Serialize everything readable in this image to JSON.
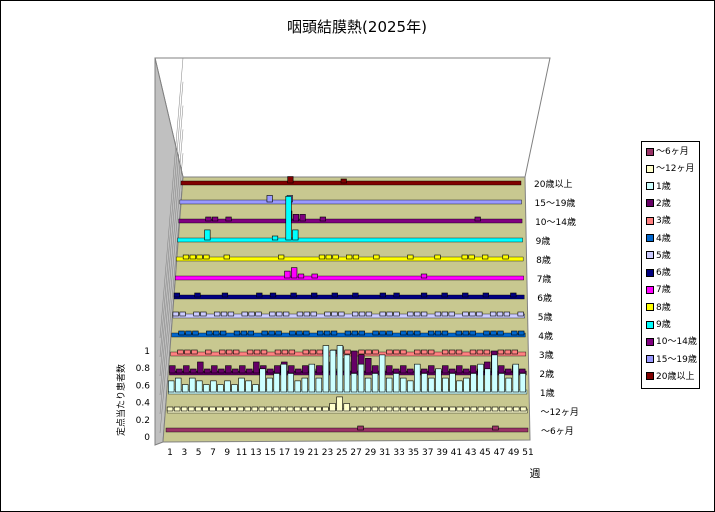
{
  "title": "咽頭結膜熱(2025年)",
  "x_label": "週",
  "z_label": "定点当たり患者数",
  "chart_data": {
    "type": "bar",
    "title": "咽頭結膜熱(2025年)",
    "xlabel": "週",
    "ylabel": "定点当たり患者数",
    "ylim": [
      0,
      1
    ],
    "yticks": [
      "0",
      "0.2",
      "0.4",
      "0.6",
      "0.8",
      "1"
    ],
    "week_ticks": [
      "1",
      "3",
      "5",
      "7",
      "9",
      "11",
      "13",
      "15",
      "17",
      "19",
      "21",
      "23",
      "25",
      "27",
      "29",
      "31",
      "33",
      "35",
      "37",
      "39",
      "41",
      "43",
      "45",
      "47",
      "49",
      "51"
    ],
    "legend_position": "right",
    "series": [
      {
        "name": "〜6ヶ月",
        "color": "#993366",
        "values": [
          0.0,
          0.0,
          0.0,
          0.0,
          0.0,
          0.0,
          0.0,
          0.0,
          0.0,
          0.0,
          0.0,
          0.0,
          0.0,
          0.0,
          0.0,
          0.0,
          0.0,
          0.0,
          0.0,
          0.0,
          0.0,
          0.0,
          0.0,
          0.0,
          0.0,
          0.0,
          0.0,
          0.04,
          0.0,
          0.0,
          0.0,
          0.0,
          0.0,
          0.0,
          0.0,
          0.0,
          0.0,
          0.0,
          0.0,
          0.0,
          0.0,
          0.0,
          0.0,
          0.0,
          0.0,
          0.0,
          0.04,
          0.0,
          0.0,
          0.0,
          0.0
        ]
      },
      {
        "name": "〜12ヶ月",
        "color": "#ffffcc",
        "values": [
          0.03,
          0.03,
          0.03,
          0.03,
          0.03,
          0.03,
          0.03,
          0.03,
          0.03,
          0.03,
          0.03,
          0.03,
          0.03,
          0.03,
          0.03,
          0.03,
          0.03,
          0.03,
          0.03,
          0.03,
          0.03,
          0.03,
          0.03,
          0.08,
          0.15,
          0.08,
          0.03,
          0.03,
          0.03,
          0.03,
          0.03,
          0.03,
          0.03,
          0.03,
          0.03,
          0.03,
          0.03,
          0.03,
          0.03,
          0.03,
          0.03,
          0.03,
          0.03,
          0.03,
          0.03,
          0.03,
          0.03,
          0.03,
          0.03,
          0.03,
          0.03
        ]
      },
      {
        "name": "1歳",
        "color": "#ccffff",
        "values": [
          0.12,
          0.15,
          0.08,
          0.15,
          0.12,
          0.08,
          0.12,
          0.08,
          0.12,
          0.08,
          0.15,
          0.12,
          0.08,
          0.25,
          0.15,
          0.2,
          0.3,
          0.2,
          0.12,
          0.15,
          0.3,
          0.15,
          0.5,
          0.45,
          0.5,
          0.4,
          0.2,
          0.3,
          0.15,
          0.2,
          0.4,
          0.15,
          0.2,
          0.15,
          0.12,
          0.3,
          0.2,
          0.15,
          0.25,
          0.15,
          0.2,
          0.12,
          0.15,
          0.2,
          0.3,
          0.25,
          0.4,
          0.2,
          0.15,
          0.3,
          0.2
        ]
      },
      {
        "name": "2歳",
        "color": "#660066",
        "values": [
          0.08,
          0.04,
          0.08,
          0.04,
          0.12,
          0.04,
          0.08,
          0.04,
          0.08,
          0.04,
          0.08,
          0.04,
          0.12,
          0.08,
          0.04,
          0.08,
          0.12,
          0.08,
          0.04,
          0.08,
          0.04,
          0.08,
          0.12,
          0.04,
          0.16,
          0.12,
          0.24,
          0.2,
          0.16,
          0.08,
          0.04,
          0.08,
          0.04,
          0.08,
          0.04,
          0.08,
          0.04,
          0.08,
          0.04,
          0.08,
          0.04,
          0.08,
          0.04,
          0.08,
          0.04,
          0.12,
          0.24,
          0.08,
          0.04,
          0.08,
          0.04
        ]
      },
      {
        "name": "3歳",
        "color": "#ff8080",
        "values": [
          0.0,
          0.04,
          0.04,
          0.04,
          0.0,
          0.04,
          0.0,
          0.04,
          0.04,
          0.04,
          0.0,
          0.04,
          0.04,
          0.04,
          0.0,
          0.04,
          0.04,
          0.04,
          0.0,
          0.04,
          0.04,
          0.04,
          0.0,
          0.04,
          0.08,
          0.04,
          0.0,
          0.04,
          0.04,
          0.04,
          0.0,
          0.04,
          0.04,
          0.04,
          0.0,
          0.04,
          0.04,
          0.04,
          0.0,
          0.04,
          0.04,
          0.04,
          0.0,
          0.04,
          0.04,
          0.04,
          0.0,
          0.04,
          0.04,
          0.04,
          0.0
        ]
      },
      {
        "name": "4歳",
        "color": "#0066cc",
        "values": [
          0.0,
          0.04,
          0.04,
          0.04,
          0.0,
          0.04,
          0.04,
          0.04,
          0.0,
          0.04,
          0.04,
          0.04,
          0.0,
          0.04,
          0.04,
          0.04,
          0.0,
          0.04,
          0.04,
          0.04,
          0.0,
          0.04,
          0.04,
          0.04,
          0.0,
          0.04,
          0.04,
          0.04,
          0.0,
          0.04,
          0.04,
          0.04,
          0.0,
          0.04,
          0.04,
          0.04,
          0.0,
          0.04,
          0.04,
          0.04,
          0.0,
          0.04,
          0.04,
          0.04,
          0.0,
          0.04,
          0.04,
          0.04,
          0.0,
          0.04,
          0.04
        ]
      },
      {
        "name": "5歳",
        "color": "#ccccff",
        "values": [
          0.04,
          0.04,
          0.0,
          0.04,
          0.04,
          0.0,
          0.04,
          0.04,
          0.04,
          0.0,
          0.04,
          0.04,
          0.04,
          0.0,
          0.04,
          0.04,
          0.04,
          0.0,
          0.04,
          0.04,
          0.04,
          0.0,
          0.04,
          0.04,
          0.04,
          0.0,
          0.04,
          0.04,
          0.04,
          0.0,
          0.04,
          0.04,
          0.04,
          0.0,
          0.04,
          0.04,
          0.04,
          0.0,
          0.04,
          0.04,
          0.04,
          0.0,
          0.04,
          0.04,
          0.04,
          0.0,
          0.04,
          0.04,
          0.04,
          0.0,
          0.04
        ]
      },
      {
        "name": "6歳",
        "color": "#000080",
        "values": [
          0.04,
          0.0,
          0.0,
          0.04,
          0.0,
          0.0,
          0.0,
          0.04,
          0.0,
          0.0,
          0.0,
          0.0,
          0.04,
          0.0,
          0.04,
          0.0,
          0.0,
          0.04,
          0.0,
          0.0,
          0.04,
          0.0,
          0.0,
          0.04,
          0.0,
          0.0,
          0.04,
          0.0,
          0.0,
          0.0,
          0.04,
          0.0,
          0.04,
          0.0,
          0.0,
          0.0,
          0.04,
          0.0,
          0.0,
          0.04,
          0.0,
          0.0,
          0.04,
          0.0,
          0.0,
          0.04,
          0.0,
          0.0,
          0.0,
          0.04,
          0.0
        ]
      },
      {
        "name": "7歳",
        "color": "#ff00ff",
        "values": [
          0.0,
          0.0,
          0.0,
          0.0,
          0.0,
          0.0,
          0.0,
          0.0,
          0.0,
          0.0,
          0.0,
          0.0,
          0.0,
          0.0,
          0.0,
          0.0,
          0.08,
          0.12,
          0.04,
          0.0,
          0.04,
          0.0,
          0.0,
          0.0,
          0.0,
          0.0,
          0.0,
          0.0,
          0.0,
          0.0,
          0.0,
          0.0,
          0.0,
          0.0,
          0.0,
          0.0,
          0.04,
          0.0,
          0.0,
          0.0,
          0.0,
          0.0,
          0.0,
          0.0,
          0.0,
          0.0,
          0.0,
          0.0,
          0.0,
          0.0,
          0.0
        ]
      },
      {
        "name": "8歳",
        "color": "#ffff00",
        "values": [
          0.0,
          0.04,
          0.04,
          0.04,
          0.04,
          0.0,
          0.0,
          0.04,
          0.0,
          0.0,
          0.0,
          0.0,
          0.0,
          0.0,
          0.0,
          0.04,
          0.0,
          0.0,
          0.0,
          0.0,
          0.0,
          0.04,
          0.04,
          0.04,
          0.0,
          0.04,
          0.04,
          0.0,
          0.0,
          0.04,
          0.0,
          0.0,
          0.0,
          0.0,
          0.04,
          0.0,
          0.0,
          0.0,
          0.04,
          0.0,
          0.0,
          0.0,
          0.04,
          0.04,
          0.0,
          0.04,
          0.0,
          0.0,
          0.04,
          0.0,
          0.0
        ]
      },
      {
        "name": "9歳",
        "color": "#00ffff",
        "values": [
          0.0,
          0.0,
          0.0,
          0.0,
          0.12,
          0.0,
          0.0,
          0.0,
          0.0,
          0.0,
          0.0,
          0.0,
          0.0,
          0.0,
          0.04,
          0.0,
          0.52,
          0.12,
          0.0,
          0.0,
          0.0,
          0.0,
          0.0,
          0.0,
          0.0,
          0.0,
          0.0,
          0.0,
          0.0,
          0.0,
          0.0,
          0.0,
          0.0,
          0.0,
          0.0,
          0.0,
          0.0,
          0.0,
          0.0,
          0.0,
          0.0,
          0.0,
          0.0,
          0.0,
          0.0,
          0.0,
          0.0,
          0.0,
          0.0,
          0.0,
          0.0
        ]
      },
      {
        "name": "10〜14歳",
        "color": "#800080",
        "values": [
          0.0,
          0.0,
          0.0,
          0.0,
          0.04,
          0.04,
          0.0,
          0.04,
          0.0,
          0.0,
          0.0,
          0.0,
          0.0,
          0.0,
          0.0,
          0.0,
          0.12,
          0.08,
          0.08,
          0.0,
          0.0,
          0.04,
          0.0,
          0.0,
          0.0,
          0.0,
          0.0,
          0.0,
          0.0,
          0.0,
          0.0,
          0.0,
          0.0,
          0.0,
          0.0,
          0.0,
          0.0,
          0.0,
          0.0,
          0.0,
          0.0,
          0.0,
          0.0,
          0.0,
          0.04,
          0.0,
          0.0,
          0.0,
          0.0,
          0.0,
          0.0
        ]
      },
      {
        "name": "15〜19歳",
        "color": "#9999ff",
        "values": [
          0.0,
          0.0,
          0.0,
          0.0,
          0.0,
          0.0,
          0.0,
          0.0,
          0.0,
          0.0,
          0.0,
          0.0,
          0.0,
          0.08,
          0.0,
          0.0,
          0.08,
          0.0,
          0.0,
          0.0,
          0.0,
          0.0,
          0.0,
          0.0,
          0.0,
          0.0,
          0.0,
          0.0,
          0.0,
          0.0,
          0.0,
          0.0,
          0.0,
          0.0,
          0.0,
          0.0,
          0.0,
          0.0,
          0.0,
          0.0,
          0.0,
          0.0,
          0.0,
          0.0,
          0.0,
          0.0,
          0.0,
          0.0,
          0.0,
          0.0,
          0.0
        ]
      },
      {
        "name": "20歳以上",
        "color": "#800000",
        "values": [
          0.0,
          0.0,
          0.0,
          0.0,
          0.0,
          0.0,
          0.0,
          0.0,
          0.0,
          0.0,
          0.0,
          0.0,
          0.0,
          0.0,
          0.0,
          0.0,
          0.08,
          0.0,
          0.0,
          0.0,
          0.0,
          0.0,
          0.0,
          0.0,
          0.04,
          0.0,
          0.0,
          0.0,
          0.0,
          0.0,
          0.0,
          0.0,
          0.0,
          0.0,
          0.0,
          0.0,
          0.0,
          0.0,
          0.0,
          0.0,
          0.0,
          0.0,
          0.0,
          0.0,
          0.0,
          0.0,
          0.0,
          0.0,
          0.0,
          0.0,
          0.0
        ]
      }
    ]
  }
}
